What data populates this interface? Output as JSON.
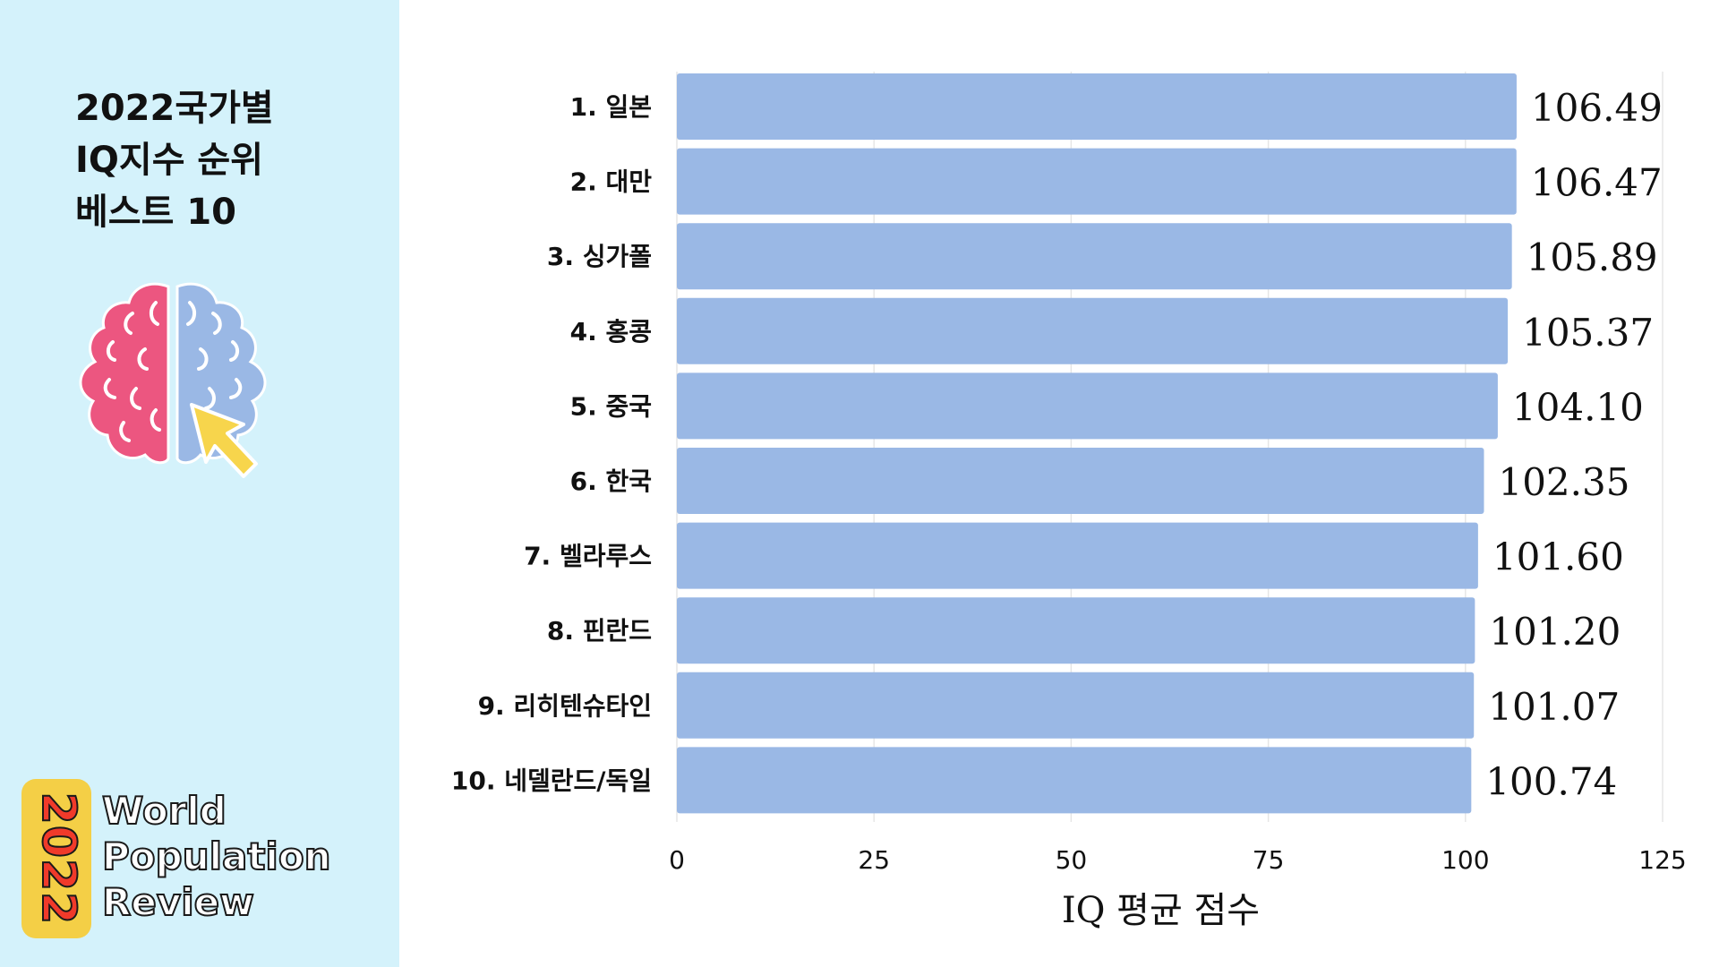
{
  "sidebar": {
    "title": {
      "line1_bold": "2022",
      "line1_rest": "국가별",
      "line2_bold": "IQ",
      "line2_rest": "지수 순위",
      "line3_rest": "베스트 ",
      "line3_bold": "10"
    },
    "icon": "brain-with-cursor-icon",
    "source": {
      "year": "2022",
      "line1": "World",
      "line2": "Population",
      "line3": "Review"
    }
  },
  "colors": {
    "sidebar_bg": "#d4f2fb",
    "bar": "#9ab8e5",
    "brain_left": "#ec5680",
    "brain_right": "#9ab8e5",
    "cursor": "#f7d54c",
    "badge": "#f4cf46",
    "badge_text": "#f03a2a"
  },
  "chart_data": {
    "type": "bar",
    "orientation": "horizontal",
    "categories": [
      "1. 일본",
      "2. 대만",
      "3. 싱가폴",
      "4. 홍콩",
      "5. 중국",
      "6. 한국",
      "7. 벨라루스",
      "8. 핀란드",
      "9. 리히텐슈타인",
      "10. 네델란드/독일"
    ],
    "values": [
      106.49,
      106.47,
      105.89,
      105.37,
      104.1,
      102.35,
      101.6,
      101.2,
      101.07,
      100.74
    ],
    "value_labels": [
      "106.49",
      "106.47",
      "105.89",
      "105.37",
      "104.10",
      "102.35",
      "101.60",
      "101.20",
      "101.07",
      "100.74"
    ],
    "xlabel": "IQ 평균 점수",
    "xlim": [
      0,
      125
    ],
    "xticks": [
      0,
      25,
      50,
      75,
      100,
      125
    ],
    "grid": true
  }
}
